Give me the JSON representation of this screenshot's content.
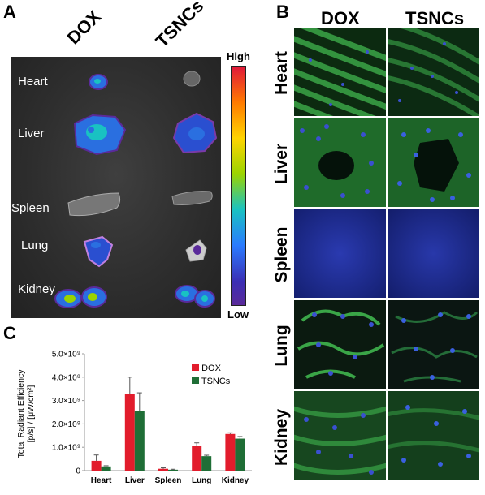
{
  "panel_a": {
    "letter": "A",
    "col_dox": "DOX",
    "col_tsncs": "TSNCs",
    "organs": [
      "Heart",
      "Liver",
      "Spleen",
      "Lung",
      "Kidney"
    ],
    "scale_high": "High",
    "scale_low": "Low"
  },
  "panel_b": {
    "letter": "B",
    "col_dox": "DOX",
    "col_tsncs": "TSNCs",
    "rows": [
      "Heart",
      "Liver",
      "Spleen",
      "Lung",
      "Kidney"
    ]
  },
  "panel_c": {
    "letter": "C"
  },
  "colors": {
    "dox": "#e21c2c",
    "tsncs": "#1f6e36",
    "fluor_green": "#3aa547",
    "fluor_blue": "#1b2fa8"
  },
  "chart_data": {
    "type": "bar",
    "categories": [
      "Heart",
      "Liver",
      "Spleen",
      "Lung",
      "Kidney"
    ],
    "series": [
      {
        "name": "DOX",
        "values": [
          0.42,
          3.28,
          0.08,
          1.07,
          1.57
        ],
        "errors": [
          0.25,
          0.72,
          0.04,
          0.12,
          0.05
        ]
      },
      {
        "name": "TSNCs",
        "values": [
          0.18,
          2.55,
          0.04,
          0.62,
          1.37
        ],
        "errors": [
          0.03,
          0.78,
          0.02,
          0.04,
          0.09
        ]
      }
    ],
    "ylabel_line1": "Total Radiant Efficiency",
    "ylabel_line2": "[p/s] / [μW/cm²]",
    "yticks": [
      "0",
      "1.0×10⁹",
      "2.0×10⁹",
      "3.0×10⁹",
      "4.0×10⁹",
      "5.0×10⁹"
    ],
    "ylim": [
      0,
      5.0
    ],
    "legend": "top-right"
  }
}
